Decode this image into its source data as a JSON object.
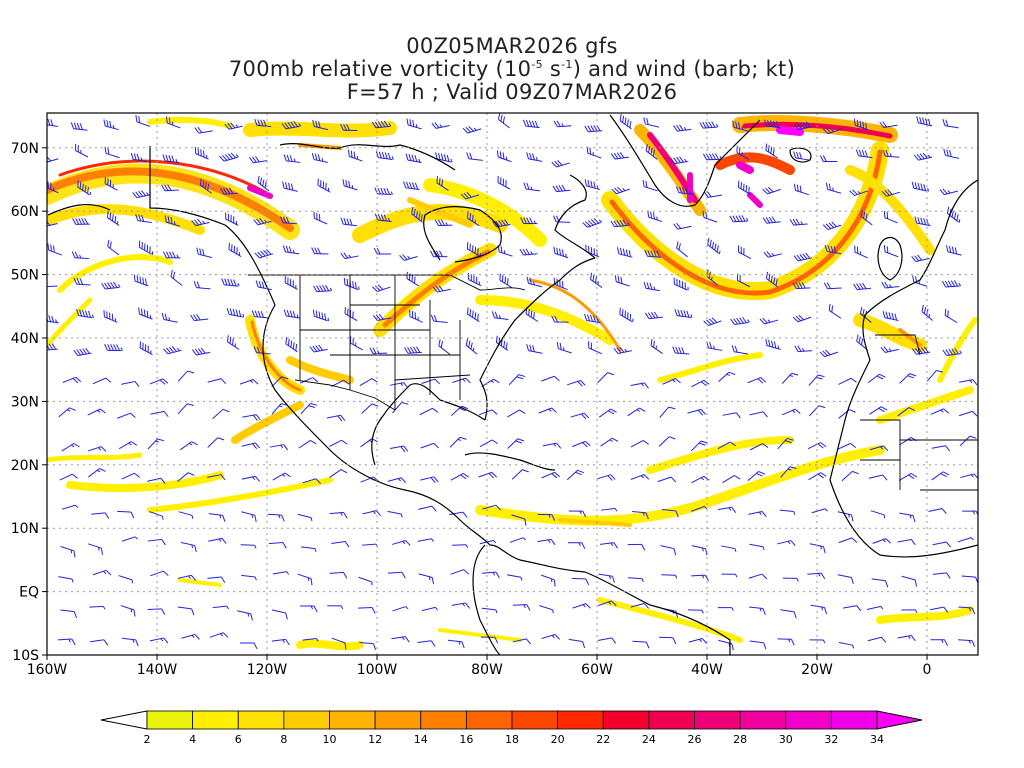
{
  "title": {
    "line1": "00Z05MAR2026 gfs",
    "line2_pre": "700mb relative vorticity (10",
    "line2_exp1": "-5",
    "line2_mid": " s",
    "line2_exp2": "-1",
    "line2_post": ") and wind (barb; kt)",
    "line3": "F=57 h ; Valid 09Z07MAR2026"
  },
  "axes": {
    "lon_labels": [
      "160W",
      "140W",
      "120W",
      "100W",
      "80W",
      "60W",
      "40W",
      "20W",
      "0"
    ],
    "lat_labels": [
      "70N",
      "60N",
      "50N",
      "40N",
      "30N",
      "20N",
      "10N",
      "EQ",
      "10S"
    ]
  },
  "colorbar": {
    "labels": [
      "2",
      "4",
      "6",
      "8",
      "10",
      "12",
      "14",
      "16",
      "18",
      "20",
      "22",
      "24",
      "26",
      "28",
      "30",
      "32",
      "34"
    ],
    "colors": [
      "#e8f50a",
      "#fff000",
      "#ffe000",
      "#ffcc00",
      "#ffb400",
      "#ff9a00",
      "#ff8000",
      "#ff6400",
      "#ff4600",
      "#ff2800",
      "#f5002e",
      "#f00050",
      "#f00078",
      "#f0009e",
      "#f000c8",
      "#f000e6"
    ],
    "under_color": "#ffffff",
    "over_color": "#ff00ff"
  },
  "colors": {
    "barb": "#2222dd",
    "coast": "#000000",
    "grid": "#9a9a9a"
  }
}
